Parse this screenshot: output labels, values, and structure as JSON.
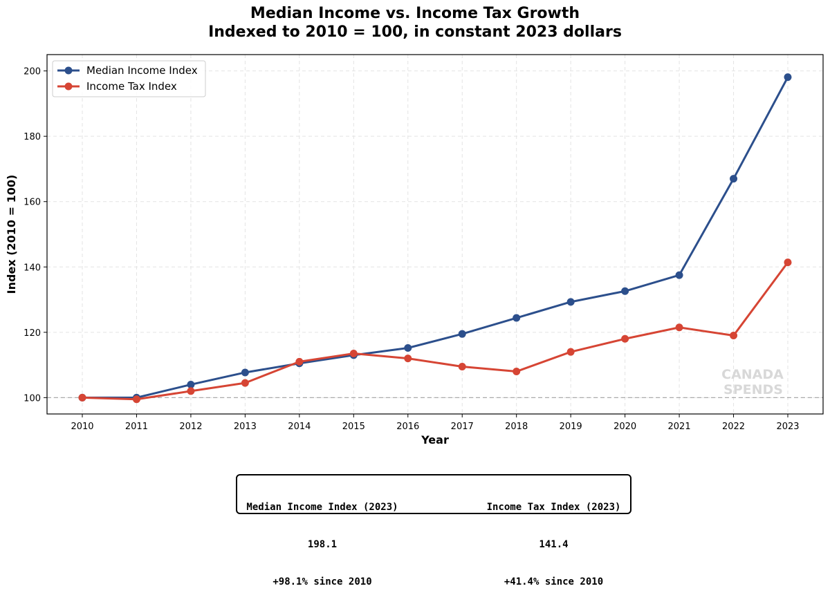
{
  "chart_data": {
    "type": "line",
    "title": "Median Income vs. Income Tax Growth",
    "subtitle": "Indexed to 2010 = 100, in constant 2023 dollars",
    "xlabel": "Year",
    "ylabel": "Index (2010 = 100)",
    "x": [
      2010,
      2011,
      2012,
      2013,
      2014,
      2015,
      2016,
      2017,
      2018,
      2019,
      2020,
      2021,
      2022,
      2023
    ],
    "ylim": [
      95,
      205
    ],
    "yticks": [
      100,
      120,
      140,
      160,
      180,
      200
    ],
    "grid": true,
    "legend_position": "top-left",
    "reference_line": 100,
    "series": [
      {
        "name": "Median Income Index",
        "color": "#2c4f8c",
        "values": [
          100,
          100,
          104,
          107.7,
          110.5,
          113,
          115.2,
          119.5,
          124.4,
          129.3,
          132.6,
          137.5,
          167,
          198.1
        ]
      },
      {
        "name": "Income Tax Index",
        "color": "#d64534",
        "values": [
          100,
          99.5,
          102,
          104.5,
          111,
          113.5,
          112,
          109.5,
          108,
          114,
          118,
          121.5,
          119,
          141.4
        ]
      }
    ],
    "watermark": [
      "CANADA",
      "SPENDS"
    ]
  },
  "summary": {
    "left": {
      "title": "Median Income Index (2023)",
      "value": "198.1",
      "change": "+98.1% since 2010"
    },
    "right": {
      "title": "Income Tax Index (2023)",
      "value": "141.4",
      "change": "+41.4% since 2010"
    }
  }
}
